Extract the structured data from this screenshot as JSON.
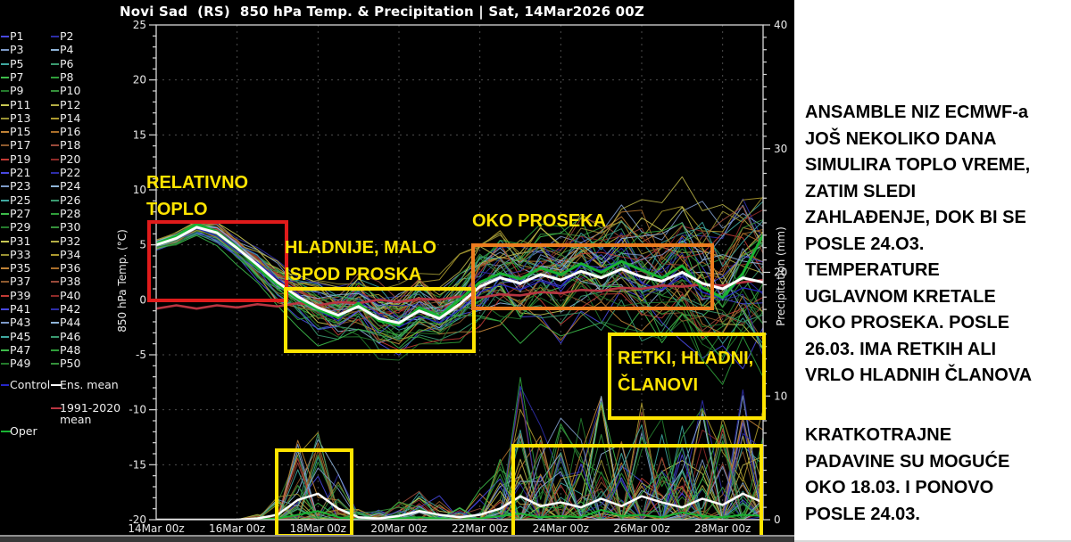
{
  "title": "Novi Sad  (RS)  850 hPa Temp. & Precipitation | Sat, 14Mar2026 00Z",
  "colors": {
    "background": "#000000",
    "panel_bg": "#ffffff",
    "annotation_yellow": "#ffe400",
    "box_red": "#e01b1b",
    "box_orange": "#ef7d1f",
    "grid": "#9a9a9a",
    "axis": "#d8d8d8"
  },
  "legend": {
    "members": [
      "P1",
      "P2",
      "P3",
      "P4",
      "P5",
      "P6",
      "P7",
      "P8",
      "P9",
      "P10",
      "P11",
      "P12",
      "P13",
      "P14",
      "P15",
      "P16",
      "P17",
      "P18",
      "P19",
      "P20",
      "P21",
      "P22",
      "P23",
      "P24",
      "P25",
      "P26",
      "P27",
      "P28",
      "P29",
      "P30",
      "P31",
      "P32",
      "P33",
      "P34",
      "P35",
      "P36",
      "P37",
      "P38",
      "P39",
      "P40",
      "P41",
      "P42",
      "P43",
      "P44",
      "P45",
      "P46",
      "P47",
      "P48",
      "P49",
      "P50"
    ],
    "palette": [
      "#4848e0",
      "#2d2da8",
      "#7d9ac8",
      "#8fb4d8",
      "#3fa8a0",
      "#3a9a70",
      "#3dbb4a",
      "#2f9e3a",
      "#247a2c",
      "#35913b",
      "#c8c853",
      "#b4ae45",
      "#9a9233",
      "#ad9a2e",
      "#c08236",
      "#aa6e2a",
      "#8e5a2e",
      "#9a4a3a",
      "#c23b35",
      "#8e2a28"
    ],
    "control_label": "Control",
    "control_color": "#2626c8",
    "ens_mean_label": "Ens. mean",
    "ens_mean_color": "#ffffff",
    "clim_label": "1991-2020\nmean",
    "clim_color": "#b83541",
    "oper_label": "Oper",
    "oper_color": "#18b332"
  },
  "annotations": {
    "relativno_toplo": "RELATIVNO\nTOPLO",
    "hladnije": "HLADNIJE, MALO\nISPOD PROSKA",
    "oko_proseka": "OKO PROSEKA",
    "retki": "RETKI, HLADNI,\nČLANOVI"
  },
  "side_panel": {
    "para1": "ANSAMBLE NIZ ECMWF-a\nJOŠ NEKOLIKO DANA\nSIMULIRA TOPLO VREME,\nZATIM SLEDI\nZAHLAĐENJE, DOK BI SE\nPOSLE 24.O3.\nTEMPERATURE\nUGLAVNOM KRETALE\nOKO PROSEKA. POSLE\n26.03. IMA RETKIH ALI\nVRLO HLADNIH ČLANOVA",
    "para2": "KRATKOTRAJNE\nPADAVINE SU MOGUĆE\nOKO 18.03. I PONOVO\nPOSLE 24.03."
  },
  "chart_data": {
    "type": "line",
    "title": "Novi Sad (RS) 850 hPa Temp. & Precipitation | Sat, 14Mar2026 00Z",
    "x_axis": {
      "tick_labels": [
        "14Mar 00z",
        "16Mar 00z",
        "18Mar 00z",
        "20Mar 00z",
        "22Mar 00z",
        "24Mar 00z",
        "26Mar 00z",
        "28Mar 00z"
      ],
      "tick_days": [
        0,
        2,
        4,
        6,
        8,
        10,
        12,
        14
      ],
      "range_days": [
        0,
        15
      ],
      "step_days": 0.5
    },
    "y_left": {
      "label": "850 hPa Temp. (°C)",
      "range": [
        -20,
        25
      ],
      "major_ticks": [
        25,
        20,
        15,
        10,
        5,
        0,
        -5,
        -10,
        -15,
        -20
      ],
      "minor_step": 1
    },
    "y_right": {
      "label": "Precipitation (mm)",
      "range": [
        0,
        40
      ],
      "major_ticks": [
        40,
        30,
        20,
        10,
        0
      ],
      "minor_step": 1
    },
    "grid": {
      "h_dashed_at": [
        20,
        15,
        10,
        5,
        0,
        -5,
        -10,
        -15
      ],
      "v_dashed_at_days": [
        2,
        4,
        6,
        8,
        10,
        12,
        14
      ]
    },
    "series": {
      "ens_mean_temp": {
        "name": "Ens. mean",
        "color": "#ffffff",
        "width": 3,
        "values": [
          5.0,
          5.6,
          6.6,
          6.1,
          4.7,
          3.2,
          1.6,
          0.3,
          -0.7,
          -1.4,
          -0.6,
          -1.7,
          -2.1,
          -1.0,
          -1.7,
          -0.4,
          1.2,
          2.0,
          1.5,
          2.3,
          1.8,
          2.6,
          2.0,
          2.8,
          2.1,
          1.7,
          2.5,
          1.5,
          1.0,
          2.0,
          1.6
        ]
      },
      "oper_temp": {
        "name": "Oper",
        "color": "#18b332",
        "width": 3,
        "values": [
          5.1,
          5.8,
          6.9,
          6.2,
          4.8,
          3.0,
          1.4,
          0.1,
          -0.9,
          -1.6,
          -0.3,
          -1.9,
          -2.3,
          -0.7,
          -1.5,
          0.0,
          1.6,
          2.4,
          1.9,
          2.9,
          2.3,
          3.3,
          2.5,
          3.5,
          2.7,
          2.0,
          3.1,
          1.1,
          0.2,
          2.4,
          5.9
        ]
      },
      "clim_mean_temp": {
        "name": "1991-2020 mean",
        "color": "#b83541",
        "width": 2.6,
        "values": [
          -0.8,
          -0.5,
          -0.8,
          -0.5,
          -0.7,
          -0.4,
          -0.6,
          -0.3,
          -0.5,
          -0.2,
          -0.3,
          0.0,
          -0.2,
          0.1,
          0.0,
          0.3,
          0.2,
          0.5,
          0.4,
          0.7,
          0.6,
          0.9,
          0.8,
          1.1,
          1.0,
          1.3,
          1.2,
          1.4,
          1.3,
          1.6,
          1.8
        ]
      },
      "control_temp": {
        "name": "Control",
        "color": "#2626c8",
        "width": 1.2,
        "values": [
          5.0,
          5.5,
          6.5,
          5.8,
          4.4,
          3.4,
          1.9,
          0.6,
          -1.0,
          -1.9,
          -0.1,
          -1.3,
          -2.5,
          -1.5,
          -2.1,
          -0.9,
          0.7,
          1.4,
          0.9,
          1.7,
          1.1,
          3.1,
          2.7,
          3.6,
          1.5,
          0.9,
          2.1,
          0.7,
          0.1,
          1.1,
          0.7
        ]
      },
      "ens_mean_precip": {
        "name": "Ens. mean precip",
        "color": "#ffffff",
        "width": 2.5,
        "values": [
          0,
          0,
          0,
          0,
          0,
          0.1,
          0.4,
          1.6,
          2.1,
          0.9,
          0.2,
          0.1,
          0.3,
          0.7,
          0.4,
          0.2,
          0.4,
          0.9,
          1.9,
          1.1,
          1.4,
          1.0,
          1.7,
          1.1,
          1.9,
          1.4,
          1.0,
          1.7,
          1.2,
          2.1,
          1.4
        ]
      },
      "oper_precip": {
        "name": "Oper precip",
        "color": "#18b332",
        "width": 2,
        "values": [
          0,
          0,
          0,
          0,
          0,
          0,
          0.1,
          0.4,
          0.7,
          0.2,
          0,
          0,
          0.1,
          0.2,
          0.1,
          0,
          0.1,
          0.3,
          0.5,
          0.2,
          0.3,
          0.2,
          0.8,
          0.3,
          0.4,
          0.2,
          0.6,
          0.3,
          0.2,
          0.4,
          0.3
        ]
      }
    },
    "ensemble_spec": {
      "count": 50,
      "seed": 7,
      "temp_spread": [
        0.4,
        0.5,
        0.6,
        0.8,
        1.0,
        1.3,
        1.6,
        1.9,
        2.2,
        2.5,
        2.6,
        2.8,
        2.9,
        3.0,
        3.1,
        3.2,
        3.4,
        3.6,
        3.8,
        4.0,
        4.2,
        4.4,
        4.7,
        4.9,
        5.1,
        5.4,
        5.6,
        5.9,
        6.1,
        6.4,
        6.6
      ],
      "precip_envelope": [
        0,
        0,
        0,
        0,
        0,
        0.5,
        2,
        6.5,
        7.5,
        4,
        1,
        0.8,
        1.5,
        3,
        2,
        1,
        2.5,
        6,
        11,
        8,
        9,
        8.5,
        10,
        9,
        11,
        9.5,
        8.5,
        10,
        9,
        11,
        9
      ],
      "cold_outlier_members": [
        9,
        27,
        41
      ],
      "cold_outlier_start_index": 22,
      "big_precip_spike": {
        "member": 7,
        "index": 18,
        "value": 11.5
      }
    }
  }
}
